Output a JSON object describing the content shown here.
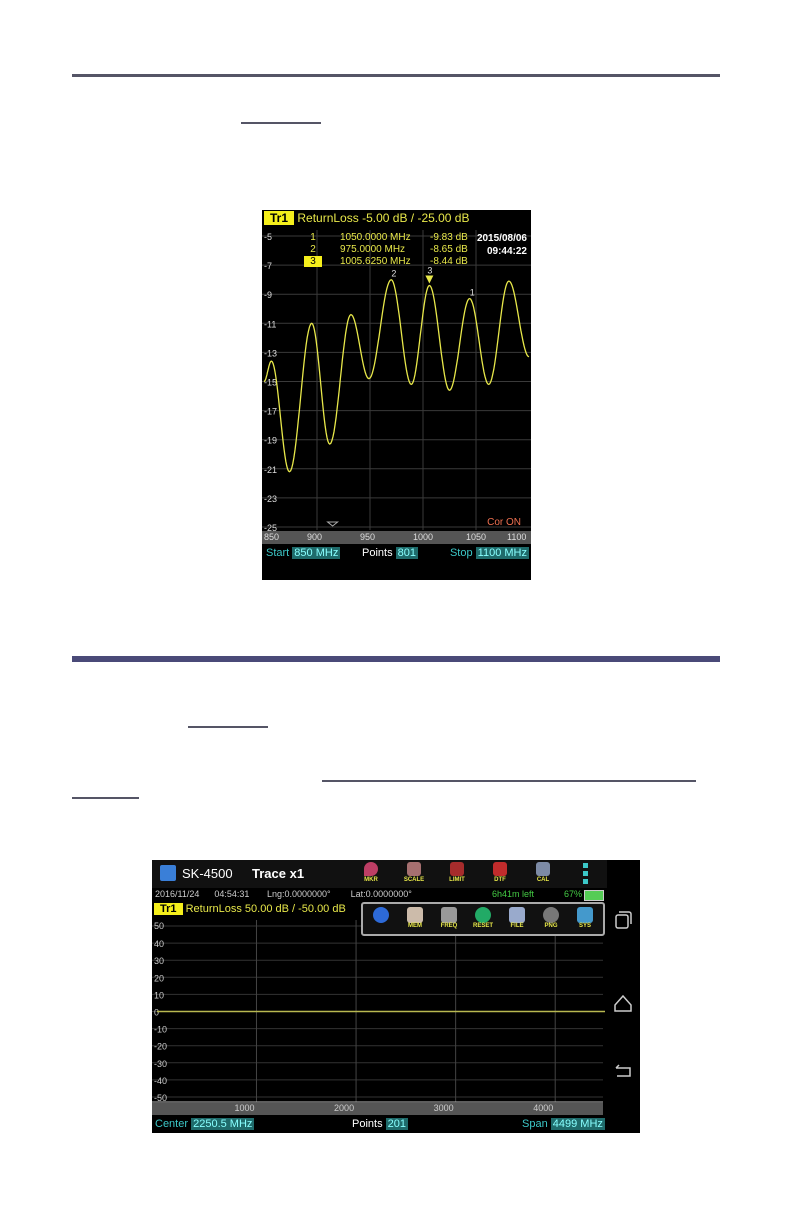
{
  "screen1": {
    "trace_label": "Tr1",
    "measurement": "ReturnLoss",
    "scale": "-5.00 dB / -25.00 dB",
    "date": "2015/08/06",
    "time": "09:44:22",
    "markers": [
      {
        "id": "1",
        "freq": "1050.0000 MHz",
        "value": "-9.83 dB",
        "active": false
      },
      {
        "id": "2",
        "freq": "975.0000 MHz",
        "value": "-8.65 dB",
        "active": false
      },
      {
        "id": "3",
        "freq": "1005.6250 MHz",
        "value": "-8.44 dB",
        "active": true
      }
    ],
    "cor_status": "Cor ON",
    "start_label": "Start",
    "start_value": "850 MHz",
    "points_label": "Points",
    "points_value": "801",
    "stop_label": "Stop",
    "stop_value": "1100 MHz"
  },
  "screen2": {
    "app_name": "SK-4500",
    "trace_menu": "Trace x1",
    "toolbar": [
      {
        "label": "MKR",
        "icon": "map-pin-icon"
      },
      {
        "label": "SCALE",
        "icon": "scale-icon"
      },
      {
        "label": "LIMIT",
        "icon": "limit-icon"
      },
      {
        "label": "DTF",
        "icon": "warning-icon"
      },
      {
        "label": "CAL",
        "icon": "satellite-dish-icon"
      }
    ],
    "status": {
      "date": "2016/11/24",
      "time": "04:54:31",
      "lng": "Lng:0.0000000°",
      "lat": "Lat:0.0000000°",
      "battery_time": "6h41m left",
      "battery_pct": "67%"
    },
    "trace_label": "Tr1",
    "measurement": "ReturnLoss",
    "scale": "50.00 dB / -50.00 dB",
    "popup_menu": [
      {
        "label": "",
        "icon": "info-icon"
      },
      {
        "label": "MEM",
        "icon": "memory-icon"
      },
      {
        "label": "FREQ",
        "icon": "gear-icon"
      },
      {
        "label": "RESET",
        "icon": "reset-icon"
      },
      {
        "label": "FILE",
        "icon": "file-icon"
      },
      {
        "label": "PNG",
        "icon": "camera-icon"
      },
      {
        "label": "SYS",
        "icon": "system-icon"
      }
    ],
    "center_label": "Center",
    "center_value": "2250.5 MHz",
    "points_label": "Points",
    "points_value": "201",
    "span_label": "Span",
    "span_value": "4499 MHz",
    "nav": [
      "recent-apps-icon",
      "home-icon",
      "back-icon"
    ]
  },
  "colors": {
    "trace": "#e8e84a",
    "grid": "#3a3a3a",
    "accent": "#3cc8c8",
    "rule": "#4a4a78"
  },
  "chart_data": [
    {
      "type": "line",
      "ylim": [
        -25,
        -5
      ],
      "xlim": [
        850,
        1100
      ],
      "yticks": [
        -5,
        -7,
        -9,
        -11,
        -13,
        -15,
        -17,
        -19,
        -21,
        -23,
        -25
      ],
      "xticks": [
        850,
        900,
        950,
        1000,
        1050,
        1100
      ],
      "x": [
        850,
        857,
        874,
        895,
        912,
        932,
        949,
        970,
        989,
        1006,
        1025,
        1044,
        1062,
        1081,
        1100
      ],
      "y": [
        -15.0,
        -13.6,
        -21.2,
        -11.0,
        -19.3,
        -10.4,
        -14.8,
        -8.0,
        -15.2,
        -8.4,
        -15.6,
        -9.3,
        -15.2,
        -8.1,
        -13.3
      ],
      "grid": true
    },
    {
      "type": "line",
      "ylim": [
        -50,
        50
      ],
      "xlim": [
        1,
        4500
      ],
      "yticks": [
        50,
        40,
        30,
        20,
        10,
        0,
        -10,
        -20,
        -30,
        -40,
        -50
      ],
      "xticks": [
        1000,
        2000,
        3000,
        4000
      ],
      "x": [
        1,
        4500
      ],
      "y": [
        0,
        0
      ],
      "grid": true
    }
  ]
}
